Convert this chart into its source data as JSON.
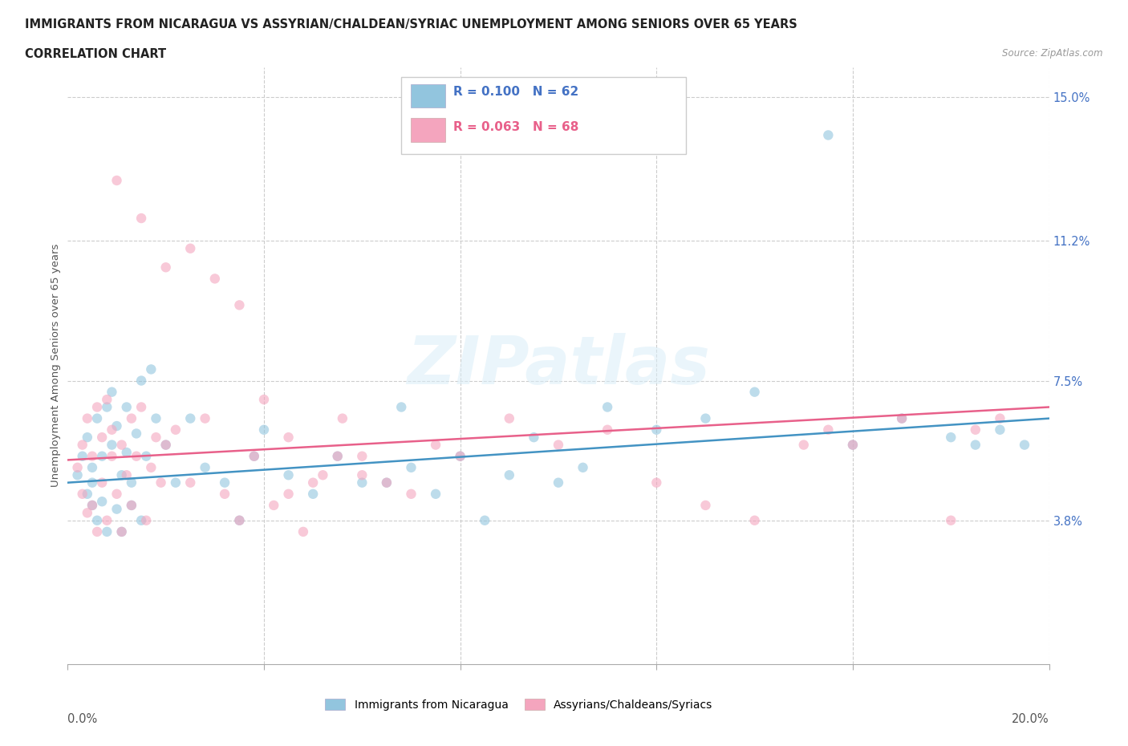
{
  "title_line1": "IMMIGRANTS FROM NICARAGUA VS ASSYRIAN/CHALDEAN/SYRIAC UNEMPLOYMENT AMONG SENIORS OVER 65 YEARS",
  "title_line2": "CORRELATION CHART",
  "source_text": "Source: ZipAtlas.com",
  "ylabel": "Unemployment Among Seniors over 65 years",
  "ytick_vals": [
    0.038,
    0.075,
    0.112,
    0.15
  ],
  "ytick_labels": [
    "3.8%",
    "7.5%",
    "11.2%",
    "15.0%"
  ],
  "xlim": [
    0.0,
    0.2
  ],
  "ylim": [
    0.0,
    0.158
  ],
  "color_blue": "#92c5de",
  "color_pink": "#f4a5be",
  "color_blue_line": "#4393c3",
  "color_pink_line": "#e8608a",
  "color_blue_text": "#4472c4",
  "color_pink_text": "#e8608a",
  "watermark": "ZIPatlas",
  "nic_x": [
    0.002,
    0.003,
    0.004,
    0.004,
    0.005,
    0.005,
    0.005,
    0.006,
    0.006,
    0.007,
    0.007,
    0.008,
    0.008,
    0.009,
    0.009,
    0.01,
    0.01,
    0.011,
    0.011,
    0.012,
    0.012,
    0.013,
    0.013,
    0.014,
    0.015,
    0.015,
    0.016,
    0.017,
    0.018,
    0.02,
    0.022,
    0.025,
    0.028,
    0.032,
    0.035,
    0.038,
    0.04,
    0.045,
    0.05,
    0.055,
    0.06,
    0.065,
    0.068,
    0.07,
    0.075,
    0.08,
    0.085,
    0.09,
    0.095,
    0.1,
    0.105,
    0.11,
    0.12,
    0.13,
    0.14,
    0.155,
    0.16,
    0.17,
    0.18,
    0.185,
    0.19,
    0.195
  ],
  "nic_y": [
    0.05,
    0.055,
    0.045,
    0.06,
    0.042,
    0.048,
    0.052,
    0.038,
    0.065,
    0.055,
    0.043,
    0.068,
    0.035,
    0.058,
    0.072,
    0.041,
    0.063,
    0.05,
    0.035,
    0.056,
    0.068,
    0.042,
    0.048,
    0.061,
    0.075,
    0.038,
    0.055,
    0.078,
    0.065,
    0.058,
    0.048,
    0.065,
    0.052,
    0.048,
    0.038,
    0.055,
    0.062,
    0.05,
    0.045,
    0.055,
    0.048,
    0.048,
    0.068,
    0.052,
    0.045,
    0.055,
    0.038,
    0.05,
    0.06,
    0.048,
    0.052,
    0.068,
    0.062,
    0.065,
    0.072,
    0.14,
    0.058,
    0.065,
    0.06,
    0.058,
    0.062,
    0.058
  ],
  "ass_x": [
    0.002,
    0.003,
    0.003,
    0.004,
    0.004,
    0.005,
    0.005,
    0.006,
    0.006,
    0.007,
    0.007,
    0.008,
    0.008,
    0.009,
    0.009,
    0.01,
    0.011,
    0.011,
    0.012,
    0.013,
    0.013,
    0.014,
    0.015,
    0.016,
    0.017,
    0.018,
    0.019,
    0.02,
    0.022,
    0.025,
    0.028,
    0.032,
    0.035,
    0.038,
    0.042,
    0.045,
    0.048,
    0.052,
    0.056,
    0.06,
    0.065,
    0.07,
    0.075,
    0.08,
    0.09,
    0.1,
    0.11,
    0.12,
    0.13,
    0.14,
    0.15,
    0.155,
    0.16,
    0.17,
    0.18,
    0.185,
    0.19,
    0.01,
    0.015,
    0.02,
    0.025,
    0.03,
    0.035,
    0.04,
    0.045,
    0.05,
    0.055,
    0.06
  ],
  "ass_y": [
    0.052,
    0.045,
    0.058,
    0.04,
    0.065,
    0.055,
    0.042,
    0.068,
    0.035,
    0.06,
    0.048,
    0.07,
    0.038,
    0.055,
    0.062,
    0.045,
    0.058,
    0.035,
    0.05,
    0.065,
    0.042,
    0.055,
    0.068,
    0.038,
    0.052,
    0.06,
    0.048,
    0.058,
    0.062,
    0.048,
    0.065,
    0.045,
    0.038,
    0.055,
    0.042,
    0.06,
    0.035,
    0.05,
    0.065,
    0.055,
    0.048,
    0.045,
    0.058,
    0.055,
    0.065,
    0.058,
    0.062,
    0.048,
    0.042,
    0.038,
    0.058,
    0.062,
    0.058,
    0.065,
    0.038,
    0.062,
    0.065,
    0.128,
    0.118,
    0.105,
    0.11,
    0.102,
    0.095,
    0.07,
    0.045,
    0.048,
    0.055,
    0.05
  ]
}
